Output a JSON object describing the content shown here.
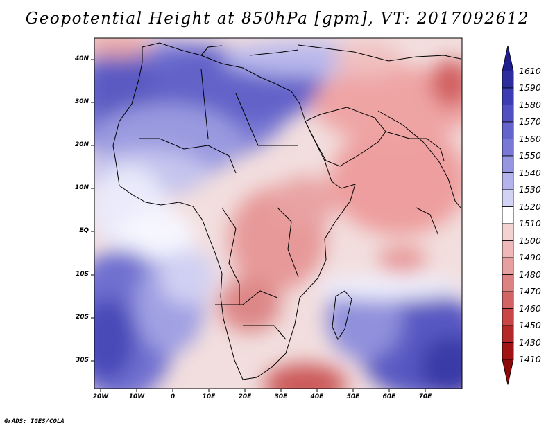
{
  "title": "Geopotential Height at 850hPa [gpm], VT: 2017092612",
  "credit": "GrADS: IGES/COLA",
  "map": {
    "variable": "Geopotential Height",
    "level": "850hPa",
    "units": "gpm",
    "valid_time": "2017092612",
    "lon_range": [
      -22,
      80
    ],
    "lat_range": [
      -36,
      45
    ],
    "lat_labels": [
      "40N",
      "30N",
      "20N",
      "10N",
      "EQ",
      "10S",
      "20S",
      "30S"
    ],
    "lon_labels": [
      "20W",
      "10W",
      "0",
      "10E",
      "20E",
      "30E",
      "40E",
      "50E",
      "60E",
      "70E"
    ]
  },
  "colorbar": {
    "labels": [
      "1610",
      "1590",
      "1580",
      "1570",
      "1560",
      "1550",
      "1540",
      "1530",
      "1520",
      "1510",
      "1500",
      "1490",
      "1480",
      "1470",
      "1460",
      "1450",
      "1430",
      "1410"
    ],
    "colors": [
      "#1e1e8c",
      "#2d2da0",
      "#3c3cb4",
      "#5050c3",
      "#6464cd",
      "#7878d7",
      "#9696e1",
      "#b4b4eb",
      "#d2d2f5",
      "#ffffff",
      "#f5d2d2",
      "#f0b9b9",
      "#e6a0a0",
      "#dc8282",
      "#d26464",
      "#c84646",
      "#b42828",
      "#a01414",
      "#8c0a0a"
    ]
  }
}
